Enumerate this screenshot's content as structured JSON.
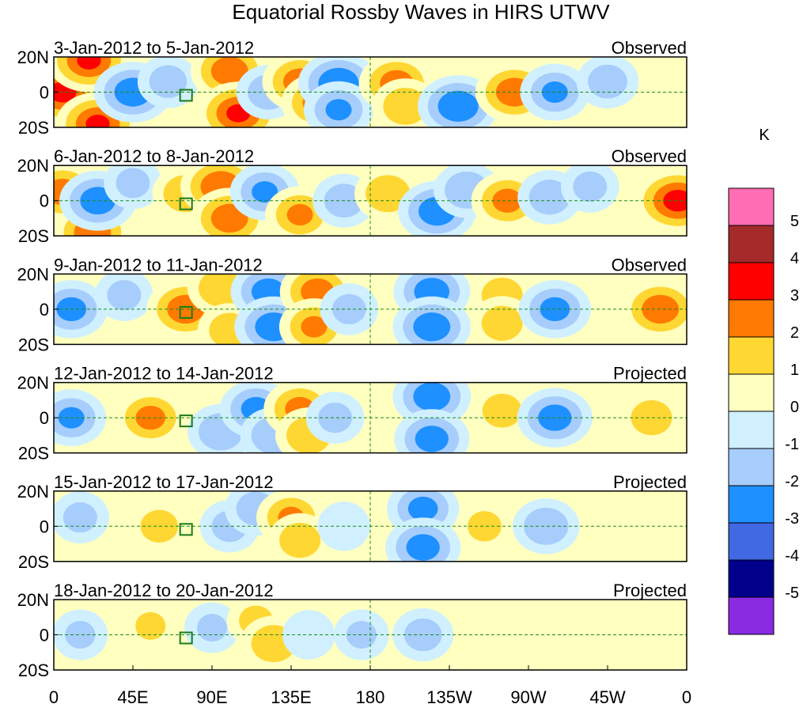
{
  "chart_data": {
    "type": "heatmap",
    "title": "Equatorial Rossby Waves in HIRS UTWV",
    "xlabel": "",
    "ylabel": "",
    "x_ticks": [
      "0",
      "45E",
      "90E",
      "135E",
      "180",
      "135W",
      "90W",
      "45W",
      "0"
    ],
    "y_ticks": [
      "20N",
      "0",
      "20S"
    ],
    "x_range": [
      0,
      360
    ],
    "y_range": [
      -20,
      20
    ],
    "colorbar": {
      "unit": "K",
      "levels": [
        "5",
        "4",
        "3",
        "2",
        "1",
        "0",
        "-1",
        "-2",
        "-3",
        "-4",
        "-5"
      ],
      "colors": [
        "#ff6eb4",
        "#a52a2a",
        "#ff0000",
        "#ff7a00",
        "#ffd733",
        "#ffffc0",
        "#d0f0ff",
        "#a6cdfc",
        "#1e90ff",
        "#4169e1",
        "#00008b",
        "#8a2be2"
      ]
    },
    "panels": [
      {
        "period": "3-Jan-2012 to 5-Jan-2012",
        "status": "Observed",
        "features": [
          {
            "lon": 5,
            "lat": 0,
            "v": 3.2
          },
          {
            "lon": 20,
            "lat": 18,
            "v": 3.0
          },
          {
            "lon": 25,
            "lat": -18,
            "v": 3.0
          },
          {
            "lon": 45,
            "lat": 0,
            "v": -2.6
          },
          {
            "lon": 65,
            "lat": 6,
            "v": -1.4
          },
          {
            "lon": 100,
            "lat": 12,
            "v": 2.6
          },
          {
            "lon": 105,
            "lat": -12,
            "v": 3.0
          },
          {
            "lon": 122,
            "lat": 0,
            "v": -1.6
          },
          {
            "lon": 140,
            "lat": 6,
            "v": 2.4
          },
          {
            "lon": 150,
            "lat": -6,
            "v": 2.2
          },
          {
            "lon": 162,
            "lat": 5,
            "v": -2.8
          },
          {
            "lon": 162,
            "lat": -10,
            "v": -2.0
          },
          {
            "lon": 195,
            "lat": 5,
            "v": 2.4
          },
          {
            "lon": 200,
            "lat": -8,
            "v": 1.8
          },
          {
            "lon": 230,
            "lat": -8,
            "v": -2.8
          },
          {
            "lon": 262,
            "lat": 0,
            "v": 2.6
          },
          {
            "lon": 285,
            "lat": 0,
            "v": -2.0
          },
          {
            "lon": 315,
            "lat": 6,
            "v": -1.5
          }
        ]
      },
      {
        "period": "6-Jan-2012 to 8-Jan-2012",
        "status": "Observed",
        "features": [
          {
            "lon": 5,
            "lat": 5,
            "v": 2.4
          },
          {
            "lon": 22,
            "lat": -18,
            "v": 2.6
          },
          {
            "lon": 25,
            "lat": 0,
            "v": -2.5
          },
          {
            "lon": 45,
            "lat": 10,
            "v": -1.2
          },
          {
            "lon": 75,
            "lat": 4,
            "v": 1.8
          },
          {
            "lon": 95,
            "lat": 8,
            "v": 2.8
          },
          {
            "lon": 100,
            "lat": -10,
            "v": 2.6
          },
          {
            "lon": 120,
            "lat": 5,
            "v": -2.0
          },
          {
            "lon": 140,
            "lat": -8,
            "v": 2.0
          },
          {
            "lon": 165,
            "lat": 0,
            "v": -1.5
          },
          {
            "lon": 190,
            "lat": 4,
            "v": 1.8
          },
          {
            "lon": 218,
            "lat": -6,
            "v": -2.6
          },
          {
            "lon": 235,
            "lat": 6,
            "v": -1.8
          },
          {
            "lon": 258,
            "lat": 0,
            "v": 2.2
          },
          {
            "lon": 282,
            "lat": 2,
            "v": -1.6
          },
          {
            "lon": 305,
            "lat": 8,
            "v": -1.2
          },
          {
            "lon": 355,
            "lat": 0,
            "v": 3.3
          }
        ]
      },
      {
        "period": "9-Jan-2012 to 11-Jan-2012",
        "status": "Observed",
        "features": [
          {
            "lon": 10,
            "lat": 0,
            "v": -2.2
          },
          {
            "lon": 40,
            "lat": 8,
            "v": -1.2
          },
          {
            "lon": 75,
            "lat": 0,
            "v": 2.6
          },
          {
            "lon": 95,
            "lat": 12,
            "v": 1.8
          },
          {
            "lon": 100,
            "lat": -12,
            "v": 1.6
          },
          {
            "lon": 122,
            "lat": 10,
            "v": -2.4
          },
          {
            "lon": 125,
            "lat": -10,
            "v": -2.6
          },
          {
            "lon": 150,
            "lat": 10,
            "v": 2.4
          },
          {
            "lon": 148,
            "lat": -10,
            "v": 2.0
          },
          {
            "lon": 168,
            "lat": 0,
            "v": -1.2
          },
          {
            "lon": 215,
            "lat": 10,
            "v": -2.5
          },
          {
            "lon": 215,
            "lat": -10,
            "v": -2.6
          },
          {
            "lon": 255,
            "lat": 8,
            "v": 1.6
          },
          {
            "lon": 255,
            "lat": -8,
            "v": 1.6
          },
          {
            "lon": 285,
            "lat": 0,
            "v": -2.2
          },
          {
            "lon": 345,
            "lat": 0,
            "v": 2.6
          }
        ]
      },
      {
        "period": "12-Jan-2012 to 14-Jan-2012",
        "status": "Projected",
        "features": [
          {
            "lon": 10,
            "lat": 0,
            "v": -2.0
          },
          {
            "lon": 55,
            "lat": 0,
            "v": 2.2
          },
          {
            "lon": 95,
            "lat": -8,
            "v": -1.8
          },
          {
            "lon": 115,
            "lat": 5,
            "v": -2.2
          },
          {
            "lon": 125,
            "lat": -10,
            "v": -1.8
          },
          {
            "lon": 140,
            "lat": 5,
            "v": 2.2
          },
          {
            "lon": 145,
            "lat": -10,
            "v": 1.8
          },
          {
            "lon": 160,
            "lat": 0,
            "v": -1.2
          },
          {
            "lon": 215,
            "lat": 12,
            "v": -2.6
          },
          {
            "lon": 215,
            "lat": -12,
            "v": -2.4
          },
          {
            "lon": 255,
            "lat": 4,
            "v": 1.5
          },
          {
            "lon": 285,
            "lat": 0,
            "v": -2.4
          },
          {
            "lon": 340,
            "lat": 0,
            "v": 1.6
          }
        ]
      },
      {
        "period": "15-Jan-2012 to 17-Jan-2012",
        "status": "Projected",
        "features": [
          {
            "lon": 15,
            "lat": 5,
            "v": -1.2
          },
          {
            "lon": 60,
            "lat": 0,
            "v": 1.4
          },
          {
            "lon": 100,
            "lat": 0,
            "v": -1.3
          },
          {
            "lon": 115,
            "lat": 10,
            "v": -1.5
          },
          {
            "lon": 135,
            "lat": 5,
            "v": 2.0
          },
          {
            "lon": 140,
            "lat": -8,
            "v": 1.6
          },
          {
            "lon": 165,
            "lat": 0,
            "v": -0.8
          },
          {
            "lon": 210,
            "lat": 10,
            "v": -2.2
          },
          {
            "lon": 210,
            "lat": -12,
            "v": -2.4
          },
          {
            "lon": 245,
            "lat": 0,
            "v": 1.2
          },
          {
            "lon": 280,
            "lat": 0,
            "v": -1.8
          },
          {
            "lon": 330,
            "lat": 0,
            "v": 0.9
          }
        ]
      },
      {
        "period": "18-Jan-2012 to 20-Jan-2012",
        "status": "Projected",
        "features": [
          {
            "lon": 15,
            "lat": 0,
            "v": -1.0
          },
          {
            "lon": 55,
            "lat": 5,
            "v": 1.0
          },
          {
            "lon": 90,
            "lat": 4,
            "v": -1.0
          },
          {
            "lon": 115,
            "lat": 8,
            "v": 1.2
          },
          {
            "lon": 125,
            "lat": -5,
            "v": 1.8
          },
          {
            "lon": 145,
            "lat": 0,
            "v": -0.8
          },
          {
            "lon": 175,
            "lat": 0,
            "v": -1.0
          },
          {
            "lon": 210,
            "lat": 0,
            "v": -1.4
          },
          {
            "lon": 270,
            "lat": 0,
            "v": 0.8
          },
          {
            "lon": 320,
            "lat": 0,
            "v": 0.6
          }
        ]
      }
    ]
  }
}
